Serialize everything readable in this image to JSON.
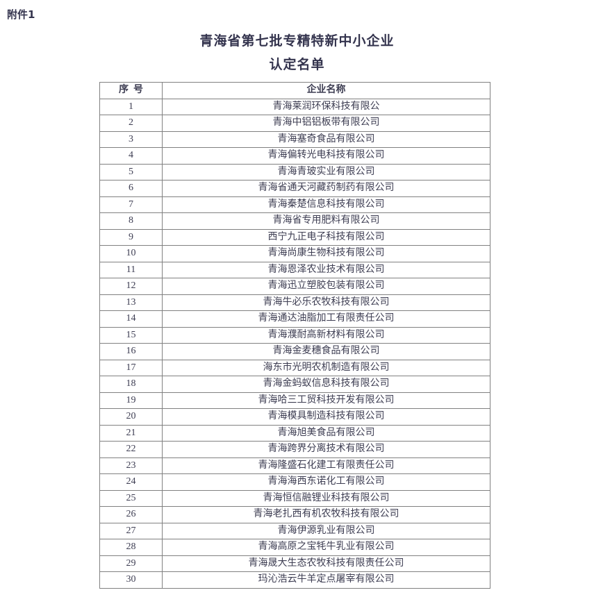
{
  "page": {
    "attachment_label": "附件1",
    "title_line1": "青海省第七批专精特新中小企业",
    "title_line2": "认定名单"
  },
  "table": {
    "header_no": "序  号",
    "header_name": "企业名称",
    "rows": [
      {
        "no": "1",
        "name": "青海莱润环保科技有限公"
      },
      {
        "no": "2",
        "name": "青海中铝铝板带有限公司"
      },
      {
        "no": "3",
        "name": "青海塞奇食品有限公司"
      },
      {
        "no": "4",
        "name": "青海偏转光电科技有限公司"
      },
      {
        "no": "5",
        "name": "青海青玻实业有限公司"
      },
      {
        "no": "6",
        "name": "青海省通天河藏药制药有限公司"
      },
      {
        "no": "7",
        "name": "青海秦楚信息科技有限公司"
      },
      {
        "no": "8",
        "name": "青海省专用肥料有限公司"
      },
      {
        "no": "9",
        "name": "西宁九正电子科技有限公司"
      },
      {
        "no": "10",
        "name": "青海尚康生物科技有限公司"
      },
      {
        "no": "11",
        "name": "青海恩泽农业技术有限公司"
      },
      {
        "no": "12",
        "name": "青海迅立塑胶包装有限公司"
      },
      {
        "no": "13",
        "name": "青海牛必乐农牧科技有限公司"
      },
      {
        "no": "14",
        "name": "青海通达油脂加工有限责任公司"
      },
      {
        "no": "15",
        "name": "青海濮耐高新材料有限公司"
      },
      {
        "no": "16",
        "name": "青海金麦穗食品有限公司"
      },
      {
        "no": "17",
        "name": "海东市光明农机制造有限公司"
      },
      {
        "no": "18",
        "name": "青海金蚂蚁信息科技有限公司"
      },
      {
        "no": "19",
        "name": "青海哈三工贸科技开发有限公司"
      },
      {
        "no": "20",
        "name": "青海模具制造科技有限公司"
      },
      {
        "no": "21",
        "name": "青海旭美食品有限公司"
      },
      {
        "no": "22",
        "name": "青海跨界分离技术有限公司"
      },
      {
        "no": "23",
        "name": "青海隆盛石化建工有限责任公司"
      },
      {
        "no": "24",
        "name": "青海海西东诺化工有限公司"
      },
      {
        "no": "25",
        "name": "青海恒信融锂业科技有限公司"
      },
      {
        "no": "26",
        "name": "青海老扎西有机农牧科技有限公司"
      },
      {
        "no": "27",
        "name": "青海伊源乳业有限公司"
      },
      {
        "no": "28",
        "name": "青海高原之宝牦牛乳业有限公司"
      },
      {
        "no": "29",
        "name": "青海晟大生态农牧科技有限责任公司"
      },
      {
        "no": "30",
        "name": "玛沁浩云牛羊定点屠宰有限公司"
      }
    ]
  },
  "colors": {
    "text": "#3d3d52",
    "title": "#34344e",
    "border": "#808080",
    "background": "#ffffff"
  }
}
